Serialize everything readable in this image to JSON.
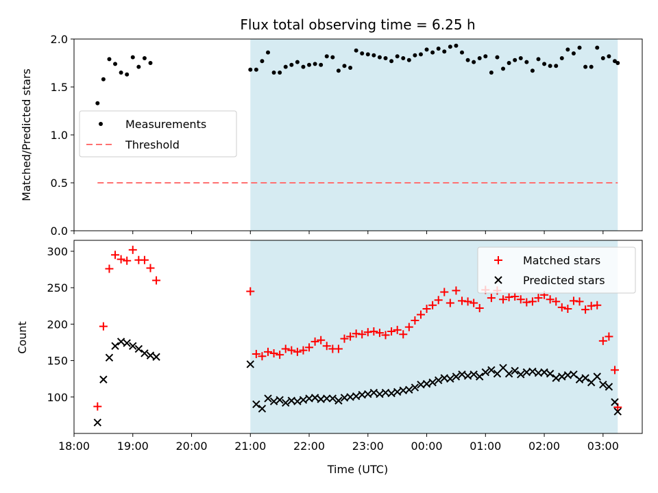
{
  "title": "Flux total observing time = 6.25 h",
  "colors": {
    "background_span": "#add8e6",
    "measurements": "#000000",
    "threshold": "#ff7070",
    "matched": "#ff0000",
    "predicted": "#000000"
  },
  "chart_data": [
    {
      "type": "scatter",
      "ylabel": "Matched/Predicted stars",
      "xlim": [
        "18:00",
        "03:40"
      ],
      "ylim": [
        0,
        2.0
      ],
      "yticks": [
        "0.0",
        "0.5",
        "1.0",
        "1.5",
        "2.0"
      ],
      "shaded_span": [
        "21:00",
        "03:15"
      ],
      "threshold": {
        "name": "Threshold",
        "value": 0.5,
        "x_range": [
          "18:24",
          "03:15"
        ]
      },
      "legend": {
        "placement": "center-left",
        "entries": [
          "Measurements",
          "Threshold"
        ]
      },
      "series": [
        {
          "name": "Measurements",
          "marker": "dot",
          "x": [
            "18:24",
            "18:30",
            "18:36",
            "18:42",
            "18:48",
            "18:54",
            "19:00",
            "19:06",
            "19:12",
            "19:18",
            "21:00",
            "21:06",
            "21:12",
            "21:18",
            "21:24",
            "21:30",
            "21:36",
            "21:42",
            "21:48",
            "21:54",
            "22:00",
            "22:06",
            "22:12",
            "22:18",
            "22:24",
            "22:30",
            "22:36",
            "22:42",
            "22:48",
            "22:54",
            "23:00",
            "23:06",
            "23:12",
            "23:18",
            "23:24",
            "23:30",
            "23:36",
            "23:42",
            "23:48",
            "23:54",
            "00:00",
            "00:06",
            "00:12",
            "00:18",
            "00:24",
            "00:30",
            "00:36",
            "00:42",
            "00:48",
            "00:54",
            "01:00",
            "01:06",
            "01:12",
            "01:18",
            "01:24",
            "01:30",
            "01:36",
            "01:42",
            "01:48",
            "01:54",
            "02:00",
            "02:06",
            "02:12",
            "02:18",
            "02:24",
            "02:30",
            "02:36",
            "02:42",
            "02:48",
            "02:54",
            "03:00",
            "03:06",
            "03:12",
            "03:15"
          ],
          "y": [
            1.33,
            1.58,
            1.79,
            1.74,
            1.65,
            1.63,
            1.81,
            1.71,
            1.8,
            1.75,
            1.68,
            1.68,
            1.77,
            1.86,
            1.65,
            1.65,
            1.71,
            1.73,
            1.76,
            1.71,
            1.73,
            1.74,
            1.73,
            1.82,
            1.81,
            1.67,
            1.72,
            1.7,
            1.88,
            1.85,
            1.84,
            1.83,
            1.81,
            1.8,
            1.77,
            1.82,
            1.8,
            1.78,
            1.83,
            1.84,
            1.89,
            1.86,
            1.9,
            1.87,
            1.92,
            1.93,
            1.86,
            1.78,
            1.76,
            1.8,
            1.82,
            1.65,
            1.81,
            1.69,
            1.75,
            1.78,
            1.8,
            1.76,
            1.67,
            1.79,
            1.74,
            1.72,
            1.72,
            1.8,
            1.89,
            1.85,
            1.91,
            1.71,
            1.71,
            1.91,
            1.8,
            1.82,
            1.77,
            1.75
          ]
        }
      ]
    },
    {
      "type": "scatter",
      "xlabel": "Time (UTC)",
      "ylabel": "Count",
      "xlim": [
        "18:00",
        "03:40"
      ],
      "ylim": [
        50,
        315
      ],
      "yticks": [
        "100",
        "150",
        "200",
        "250",
        "300"
      ],
      "xticks": [
        "18:00",
        "19:00",
        "20:00",
        "21:00",
        "22:00",
        "23:00",
        "00:00",
        "01:00",
        "02:00",
        "03:00"
      ],
      "shaded_span": [
        "21:00",
        "03:15"
      ],
      "legend": {
        "placement": "top-right",
        "entries": [
          "Matched stars",
          "Predicted stars"
        ]
      },
      "series": [
        {
          "name": "Matched stars",
          "marker": "plus",
          "x": [
            "18:24",
            "18:30",
            "18:36",
            "18:42",
            "18:48",
            "18:54",
            "19:00",
            "19:06",
            "19:12",
            "19:18",
            "19:24",
            "21:00",
            "21:06",
            "21:12",
            "21:18",
            "21:24",
            "21:30",
            "21:36",
            "21:42",
            "21:48",
            "21:54",
            "22:00",
            "22:06",
            "22:12",
            "22:18",
            "22:24",
            "22:30",
            "22:36",
            "22:42",
            "22:48",
            "22:54",
            "23:00",
            "23:06",
            "23:12",
            "23:18",
            "23:24",
            "23:30",
            "23:36",
            "23:42",
            "23:48",
            "23:54",
            "00:00",
            "00:06",
            "00:12",
            "00:18",
            "00:24",
            "00:30",
            "00:36",
            "00:42",
            "00:48",
            "00:54",
            "01:00",
            "01:06",
            "01:12",
            "01:18",
            "01:24",
            "01:30",
            "01:36",
            "01:42",
            "01:48",
            "01:54",
            "02:00",
            "02:06",
            "02:12",
            "02:18",
            "02:24",
            "02:30",
            "02:36",
            "02:42",
            "02:48",
            "02:54",
            "03:00",
            "03:06",
            "03:12",
            "03:15"
          ],
          "y": [
            87,
            197,
            276,
            295,
            289,
            287,
            302,
            288,
            288,
            277,
            260,
            245,
            159,
            156,
            162,
            160,
            158,
            166,
            164,
            162,
            164,
            168,
            176,
            178,
            170,
            166,
            166,
            180,
            183,
            187,
            186,
            189,
            190,
            188,
            185,
            190,
            192,
            186,
            196,
            205,
            213,
            221,
            226,
            233,
            244,
            229,
            246,
            232,
            231,
            229,
            222,
            247,
            236,
            246,
            234,
            237,
            238,
            234,
            230,
            231,
            236,
            240,
            234,
            231,
            223,
            221,
            232,
            231,
            220,
            225,
            226,
            177,
            183,
            137,
            86
          ]
        },
        {
          "name": "Predicted stars",
          "marker": "x",
          "x": [
            "18:24",
            "18:30",
            "18:36",
            "18:42",
            "18:48",
            "18:54",
            "19:00",
            "19:06",
            "19:12",
            "19:18",
            "19:24",
            "21:00",
            "21:06",
            "21:12",
            "21:18",
            "21:24",
            "21:30",
            "21:36",
            "21:42",
            "21:48",
            "21:54",
            "22:00",
            "22:06",
            "22:12",
            "22:18",
            "22:24",
            "22:30",
            "22:36",
            "22:42",
            "22:48",
            "22:54",
            "23:00",
            "23:06",
            "23:12",
            "23:18",
            "23:24",
            "23:30",
            "23:36",
            "23:42",
            "23:48",
            "23:54",
            "00:00",
            "00:06",
            "00:12",
            "00:18",
            "00:24",
            "00:30",
            "00:36",
            "00:42",
            "00:48",
            "00:54",
            "01:00",
            "01:06",
            "01:12",
            "01:18",
            "01:24",
            "01:30",
            "01:36",
            "01:42",
            "01:48",
            "01:54",
            "02:00",
            "02:06",
            "02:12",
            "02:18",
            "02:24",
            "02:30",
            "02:36",
            "02:42",
            "02:48",
            "02:54",
            "03:00",
            "03:06",
            "03:12",
            "03:15"
          ],
          "y": [
            65,
            124,
            154,
            170,
            176,
            174,
            170,
            166,
            160,
            157,
            155,
            145,
            90,
            84,
            98,
            94,
            96,
            92,
            95,
            94,
            96,
            98,
            99,
            97,
            98,
            98,
            95,
            99,
            100,
            101,
            103,
            104,
            106,
            104,
            106,
            105,
            107,
            109,
            110,
            113,
            117,
            118,
            120,
            123,
            126,
            125,
            128,
            131,
            129,
            131,
            128,
            134,
            137,
            132,
            140,
            132,
            136,
            131,
            134,
            135,
            133,
            134,
            132,
            126,
            128,
            130,
            131,
            124,
            126,
            120,
            128,
            117,
            114,
            93,
            80
          ]
        }
      ]
    }
  ]
}
